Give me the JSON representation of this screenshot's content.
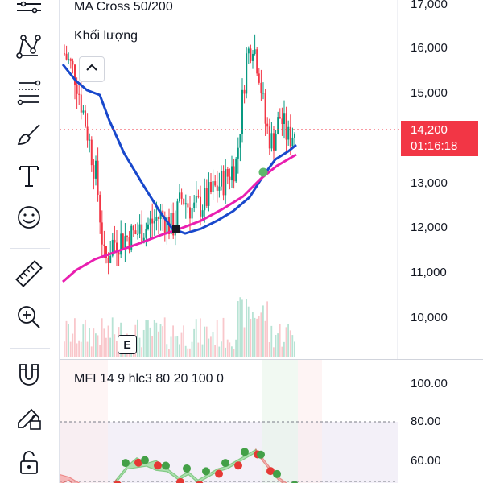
{
  "toolbar": {
    "items": [
      {
        "name": "lines-tool-icon"
      },
      {
        "name": "pattern-tool-icon"
      },
      {
        "name": "fib-tool-icon"
      },
      {
        "name": "brush-tool-icon"
      },
      {
        "name": "text-tool-icon"
      },
      {
        "name": "emoji-tool-icon"
      },
      {
        "name": "ruler-tool-icon"
      },
      {
        "name": "zoom-in-tool-icon"
      },
      {
        "name": "magnet-tool-icon"
      },
      {
        "name": "lock-drawing-tool-icon"
      },
      {
        "name": "unlock-tool-icon"
      }
    ]
  },
  "legend": {
    "indicator_title": "MA Cross 50/200",
    "volume_label": "Khối lượng",
    "mfi_title": "MFI 14 9 hlc3 80 20 100 0"
  },
  "earnings_badge": "E",
  "price_axis": {
    "labels": [
      "17,000",
      "16,000",
      "15,000",
      "13,000",
      "12,000",
      "11,000",
      "10,000"
    ],
    "current_price": "14,200",
    "countdown": "01:16:18"
  },
  "mfi_axis": {
    "labels": [
      "100.00",
      "80.00",
      "60.00"
    ]
  },
  "colors": {
    "up": "#089981",
    "down": "#f23645",
    "ma_fast": "#1848cc",
    "ma_slow": "#e91eb0",
    "mfi_band_up": "#4caf50",
    "mfi_band_down": "#f23645",
    "price_tag": "#f23645"
  }
}
